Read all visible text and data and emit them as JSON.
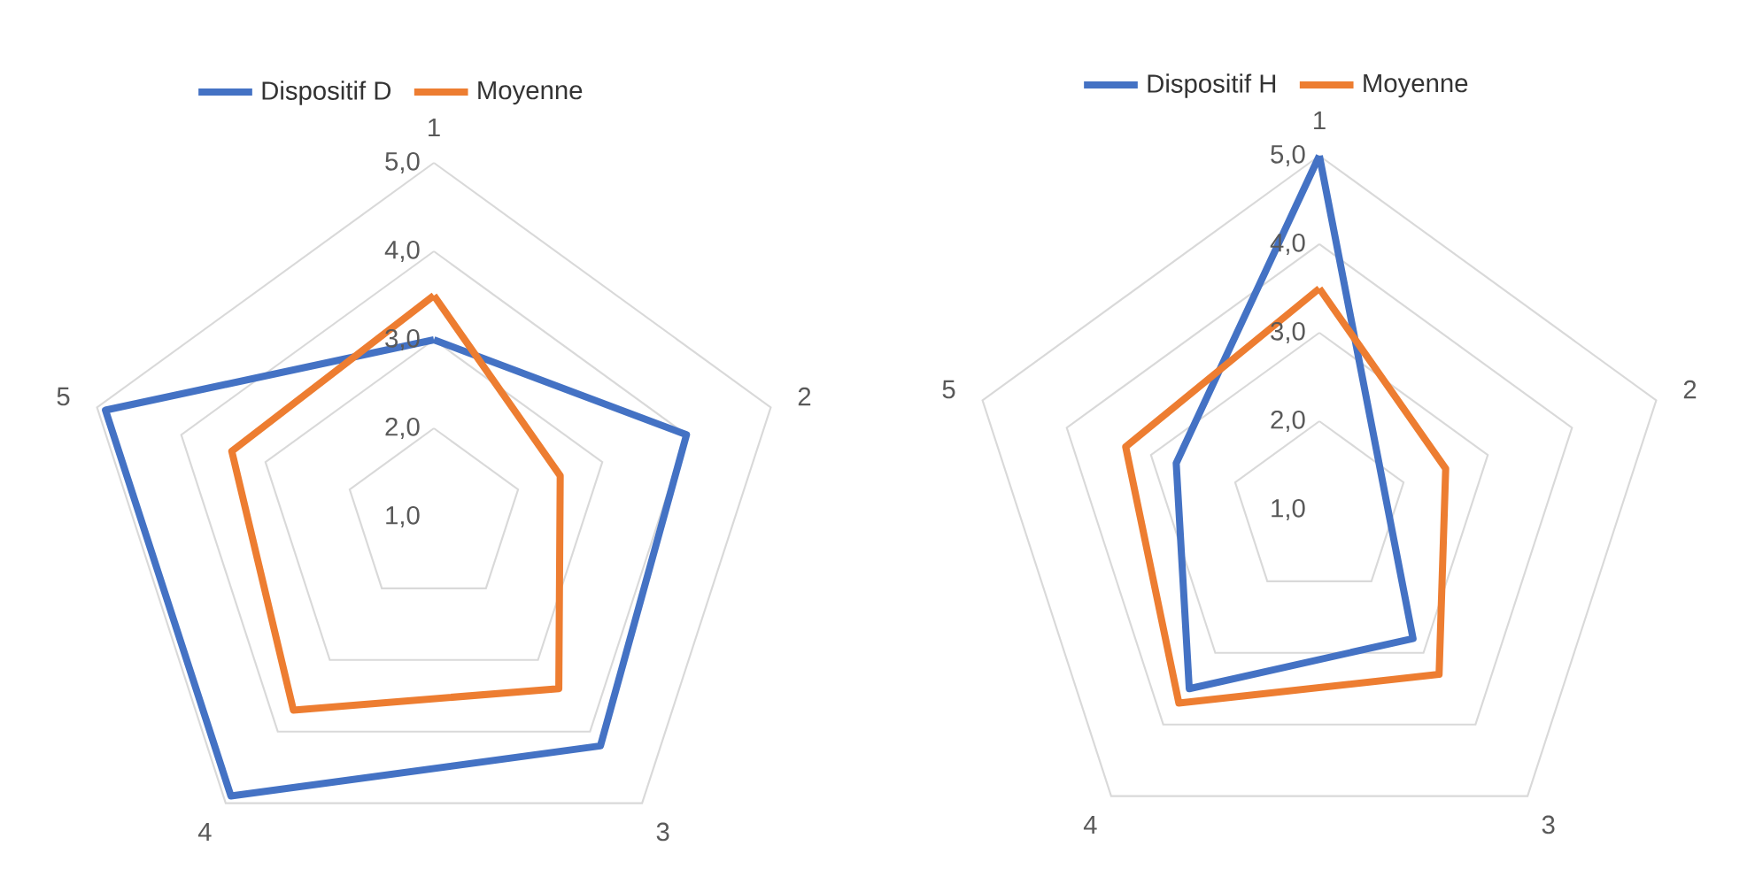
{
  "chart_data": [
    {
      "type": "radar",
      "categories": [
        "1",
        "2",
        "3",
        "4",
        "5"
      ],
      "series": [
        {
          "name": "Dispositif D",
          "color": "#4472c4",
          "values": [
            3.0,
            4.0,
            4.2,
            4.9,
            4.9
          ]
        },
        {
          "name": "Moyenne",
          "color": "#ed7d31",
          "values": [
            3.5,
            2.5,
            3.4,
            3.7,
            3.4
          ]
        }
      ],
      "ylim": [
        1,
        5
      ],
      "yticks": [
        {
          "value": 1,
          "label": "1,0"
        },
        {
          "value": 2,
          "label": "2,0"
        },
        {
          "value": 3,
          "label": "3,0"
        },
        {
          "value": 4,
          "label": "4,0"
        },
        {
          "value": 5,
          "label": "5,0"
        }
      ],
      "grid": true,
      "legend": "top left"
    },
    {
      "type": "radar",
      "categories": [
        "1",
        "2",
        "3",
        "4",
        "5"
      ],
      "series": [
        {
          "name": "Dispositif H",
          "color": "#4472c4",
          "values": [
            5.0,
            null,
            2.8,
            3.5,
            2.7
          ]
        },
        {
          "name": "Moyenne",
          "color": "#ed7d31",
          "values": [
            3.5,
            2.5,
            3.3,
            3.7,
            3.3
          ]
        }
      ],
      "ylim": [
        1,
        5
      ],
      "yticks": [
        {
          "value": 1,
          "label": "1,0"
        },
        {
          "value": 2,
          "label": "2,0"
        },
        {
          "value": 3,
          "label": "3,0"
        },
        {
          "value": 4,
          "label": "4,0"
        },
        {
          "value": 5,
          "label": "5,0"
        }
      ],
      "grid": true,
      "legend": "top left"
    }
  ]
}
